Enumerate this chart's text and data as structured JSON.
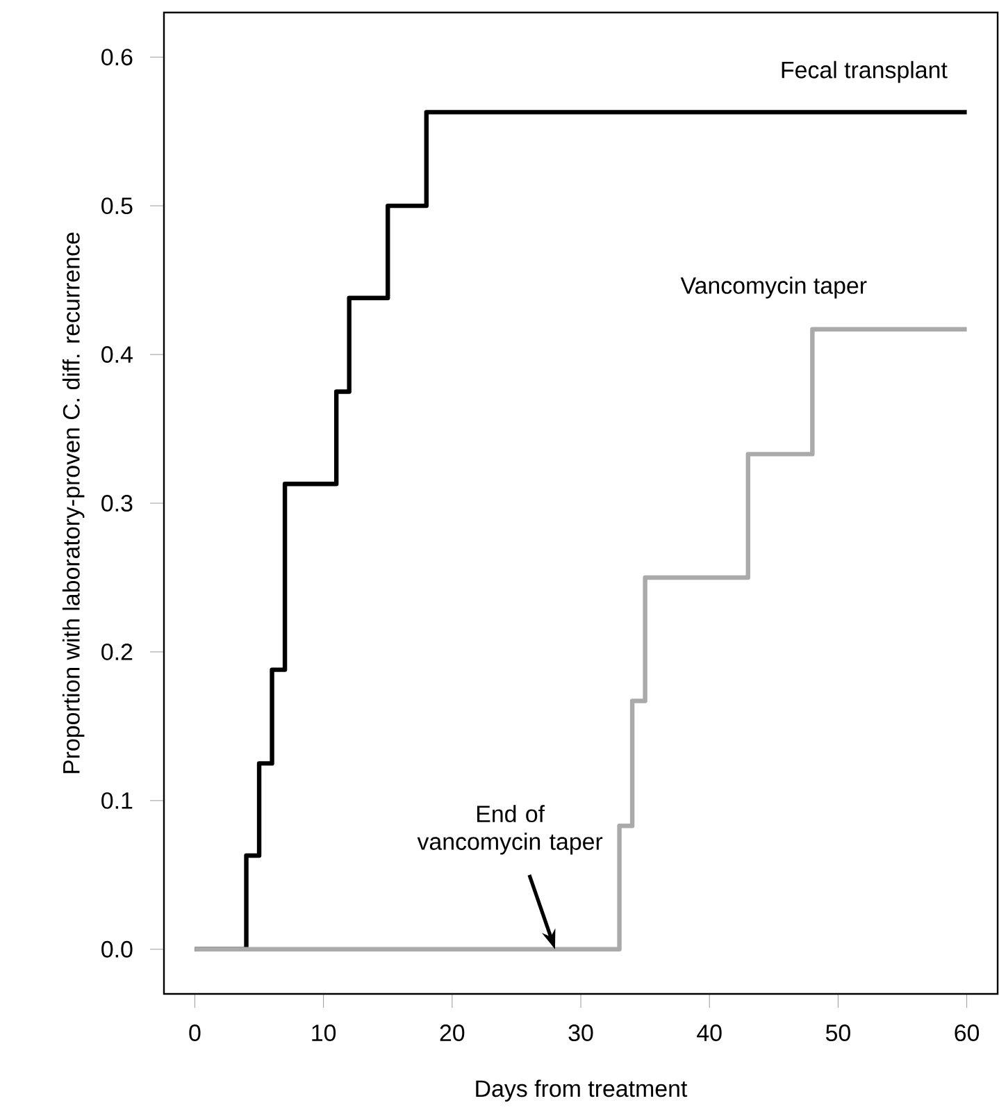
{
  "chart_data": {
    "type": "step",
    "xlabel": "Days from treatment",
    "ylabel": "Proportion with laboratory-proven C. diff. recurrence",
    "xlim": [
      -2.4,
      62.4
    ],
    "ylim": [
      -0.03,
      0.63
    ],
    "xticks": [
      0,
      10,
      20,
      30,
      40,
      50,
      60
    ],
    "yticks": [
      {
        "value": 0,
        "label": "0.0"
      },
      {
        "value": 0.1,
        "label": "0.1"
      },
      {
        "value": 0.2,
        "label": "0.2"
      },
      {
        "value": 0.3,
        "label": "0.3"
      },
      {
        "value": 0.4,
        "label": "0.4"
      },
      {
        "value": 0.5,
        "label": "0.5"
      },
      {
        "value": 0.6,
        "label": "0.6"
      }
    ],
    "series": [
      {
        "name": "Fecal transplant",
        "color": "#000000",
        "x": [
          0,
          4,
          5,
          6,
          7,
          11,
          12,
          15,
          18,
          60
        ],
        "values": [
          0,
          0.063,
          0.125,
          0.188,
          0.313,
          0.375,
          0.438,
          0.5,
          0.563,
          0.563
        ]
      },
      {
        "name": "Vancomycin taper",
        "color": "#aaaaaa",
        "x": [
          0,
          33,
          34,
          35,
          43,
          48,
          60
        ],
        "values": [
          0,
          0.083,
          0.167,
          0.25,
          0.333,
          0.417,
          0.417
        ]
      }
    ],
    "annotations": [
      {
        "text": "End of vancomycin taper",
        "x": 28,
        "y": 0
      }
    ]
  }
}
